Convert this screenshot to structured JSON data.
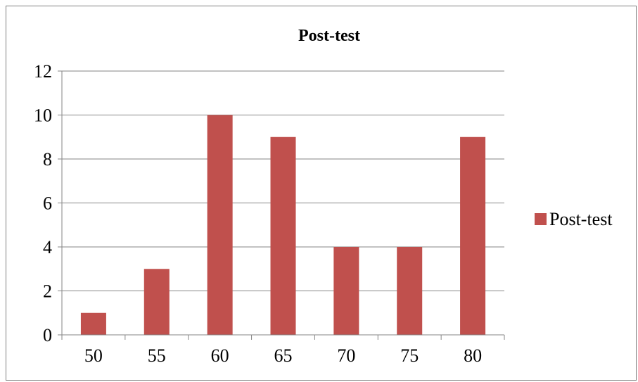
{
  "chart_data": {
    "type": "bar",
    "title": "Post-test",
    "xlabel": "",
    "ylabel": "",
    "categories": [
      "50",
      "55",
      "60",
      "65",
      "70",
      "75",
      "80"
    ],
    "series": [
      {
        "name": "Post-test",
        "values": [
          1,
          3,
          10,
          9,
          4,
          4,
          9
        ],
        "color": "#c0504d"
      }
    ],
    "ylim": [
      0,
      12
    ],
    "yticks": [
      "0",
      "2",
      "4",
      "6",
      "8",
      "10",
      "12"
    ],
    "grid": true,
    "legend_position": "right"
  }
}
